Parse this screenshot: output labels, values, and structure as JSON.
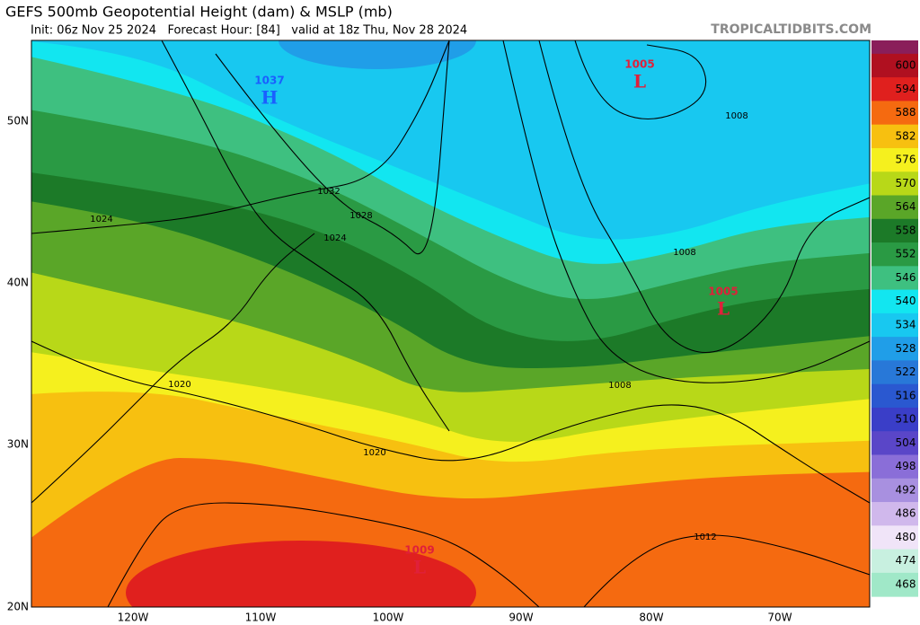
{
  "header": {
    "title": "GEFS 500mb Geopotential Height (dam) & MSLP (mb)",
    "subtitle": "Init: 06z Nov 25 2024   Forecast Hour: [84]   valid at 18z Thu, Nov 28 2024",
    "watermark": "TROPICALTIDBITS.COM"
  },
  "colorbar": {
    "labels": [
      "600",
      "594",
      "588",
      "582",
      "576",
      "570",
      "564",
      "558",
      "552",
      "546",
      "540",
      "534",
      "528",
      "522",
      "516",
      "510",
      "504",
      "498",
      "492",
      "486",
      "480",
      "474",
      "468"
    ],
    "colors": [
      "#b01020",
      "#e0201e",
      "#f56a10",
      "#f7c010",
      "#f5f01e",
      "#b8d818",
      "#5aa628",
      "#1c7a28",
      "#2a9a44",
      "#3ec080",
      "#12e6f0",
      "#18c8f0",
      "#209ee8",
      "#2878d8",
      "#2a58d0",
      "#3a3ec8",
      "#5a46c8",
      "#8a6ed8",
      "#a890e0",
      "#d0b8ec",
      "#f0e4f8",
      "#c8f0e0",
      "#a0e8c8"
    ]
  },
  "axes": {
    "lat": [
      "50N",
      "40N",
      "30N",
      "20N"
    ],
    "lon": [
      "120W",
      "110W",
      "100W",
      "90W",
      "80W",
      "70W"
    ]
  },
  "centers": [
    {
      "pressure": "1037",
      "symbol": "H"
    },
    {
      "pressure": "1005",
      "symbol": "L"
    },
    {
      "pressure": "1005",
      "symbol": "L"
    },
    {
      "pressure": "1009",
      "symbol": "L"
    }
  ],
  "isobar_labels": [
    "1032",
    "1028",
    "1024",
    "1024",
    "1020",
    "1020",
    "1008",
    "1008",
    "1008",
    "1012"
  ]
}
